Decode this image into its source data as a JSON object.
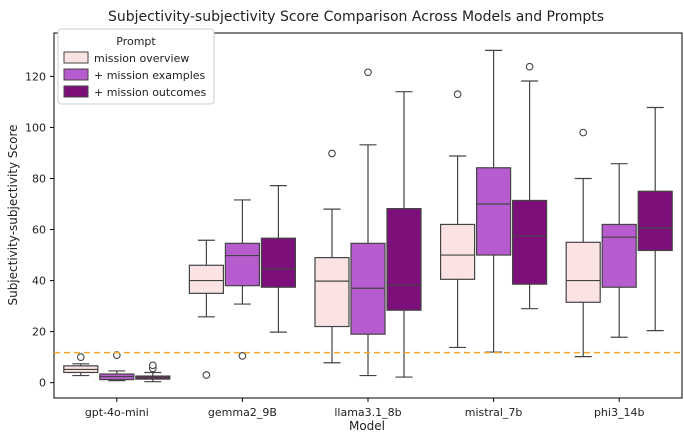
{
  "chart_data": {
    "type": "boxplot",
    "title": "Subjectivity-subjectivity Score Comparison Across Models and Prompts",
    "xlabel": "Model",
    "ylabel": "Subjectivity-subjectivity Score",
    "ylim": [
      -6,
      137
    ],
    "yticks": [
      0,
      20,
      40,
      60,
      80,
      100,
      120
    ],
    "grid": false,
    "legend": {
      "title": "Prompt",
      "location": "top-left"
    },
    "reference_line": {
      "y": 11.8,
      "style": "dashed",
      "color": "#f4a62a"
    },
    "categories": [
      "gpt-4o-mini",
      "gemma2_9B",
      "llama3.1_8b",
      "mistral_7b",
      "phi3_14b"
    ],
    "series": [
      {
        "name": "mission overview",
        "color": "#fbe3e3",
        "boxes": [
          {
            "min": 2.8,
            "q1": 4.0,
            "median": 5.2,
            "q3": 6.6,
            "max": 7.4,
            "outliers": [
              10.0
            ]
          },
          {
            "min": 25.8,
            "q1": 35.0,
            "median": 40.0,
            "q3": 46.0,
            "max": 55.8,
            "outliers": [
              3.0
            ]
          },
          {
            "min": 7.8,
            "q1": 22.0,
            "median": 39.8,
            "q3": 49.0,
            "max": 68.0,
            "outliers": [
              89.8
            ]
          },
          {
            "min": 13.8,
            "q1": 40.5,
            "median": 50.0,
            "q3": 62.0,
            "max": 88.8,
            "outliers": [
              113.0
            ]
          },
          {
            "min": 10.2,
            "q1": 31.5,
            "median": 40.0,
            "q3": 55.0,
            "max": 80.0,
            "outliers": [
              98.0
            ]
          }
        ]
      },
      {
        "name": "+ mission examples",
        "color": "#b65ccf",
        "boxes": [
          {
            "min": 0.8,
            "q1": 1.2,
            "median": 2.4,
            "q3": 3.4,
            "max": 4.6,
            "outliers": [
              10.8
            ]
          },
          {
            "min": 30.8,
            "q1": 38.0,
            "median": 49.8,
            "q3": 54.6,
            "max": 71.6,
            "outliers": [
              10.5
            ]
          },
          {
            "min": 2.8,
            "q1": 19.0,
            "median": 37.0,
            "q3": 54.6,
            "max": 93.2,
            "outliers": [
              121.6
            ]
          },
          {
            "min": 12.0,
            "q1": 50.0,
            "median": 70.0,
            "q3": 84.2,
            "max": 130.2,
            "outliers": []
          },
          {
            "min": 17.8,
            "q1": 37.4,
            "median": 57.0,
            "q3": 62.0,
            "max": 85.8,
            "outliers": []
          }
        ]
      },
      {
        "name": "+ mission outcomes",
        "color": "#7d0f7a",
        "boxes": [
          {
            "min": 0.4,
            "q1": 1.4,
            "median": 2.0,
            "q3": 2.6,
            "max": 4.0,
            "outliers": [
              5.6,
              6.8
            ]
          },
          {
            "min": 19.8,
            "q1": 37.4,
            "median": 44.6,
            "q3": 56.6,
            "max": 77.2,
            "outliers": []
          },
          {
            "min": 2.2,
            "q1": 28.4,
            "median": 38.2,
            "q3": 68.2,
            "max": 114.0,
            "outliers": []
          },
          {
            "min": 29.0,
            "q1": 38.6,
            "median": 57.4,
            "q3": 71.4,
            "max": 118.2,
            "outliers": [
              123.8
            ]
          },
          {
            "min": 20.4,
            "q1": 51.8,
            "median": 60.6,
            "q3": 75.0,
            "max": 107.8,
            "outliers": []
          }
        ]
      }
    ]
  }
}
